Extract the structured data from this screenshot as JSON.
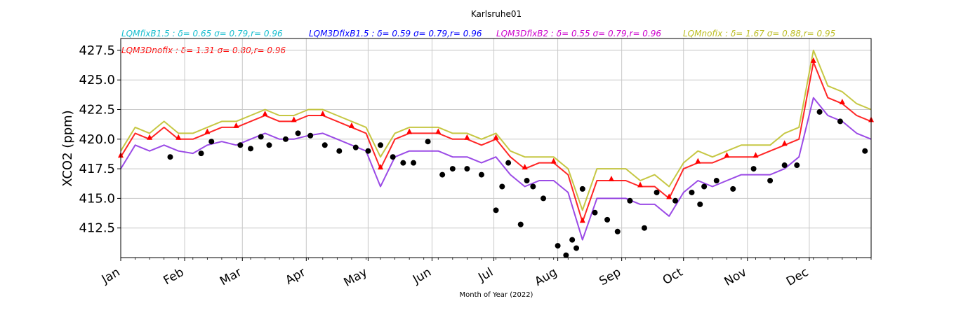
{
  "chart_data": {
    "type": "line",
    "title": "Karlsruhe01",
    "xlabel": "Month of Year (2022)",
    "ylabel": "XCO2 (ppm)",
    "xlim": [
      "2022-01-01",
      "2022-12-31"
    ],
    "ylim": [
      410.0,
      428.5
    ],
    "yticks": [
      412.5,
      415.0,
      417.5,
      420.0,
      422.5,
      425.0,
      427.5
    ],
    "ytick_labels": [
      "412.5",
      "415.0",
      "417.5",
      "420.0",
      "422.5",
      "425.0",
      "427.5"
    ],
    "xtick_labels": [
      "Jan",
      "Feb",
      "Mar",
      "Apr",
      "May",
      "Jun",
      "Jul",
      "Aug",
      "Sep",
      "Oct",
      "Nov",
      "Dec"
    ],
    "grid": true,
    "legend": [
      {
        "text": "LQMfixB1.5 : δ= 0.65 σ= 0.79,r= 0.96",
        "color": "#17becf"
      },
      {
        "text": "LQM3DfixB1.5 : δ= 0.59 σ= 0.79,r= 0.96",
        "color": "#0000ff"
      },
      {
        "text": "LQM3DfixB2 : δ= 0.55 σ= 0.79,r= 0.96",
        "color": "#cc00cc"
      },
      {
        "text": "LQMnofix : δ= 1.67 σ= 0.88,r= 0.95",
        "color": "#bcbd22"
      },
      {
        "text": "LQM3Dnofix : δ= 1.31 σ= 0.80,r= 0.96",
        "color": "#ff0000"
      }
    ],
    "series": [
      {
        "name": "LQM3DfixB2",
        "color": "#8a2be2",
        "x": [
          "2022-01-01",
          "2022-01-08",
          "2022-01-15",
          "2022-01-22",
          "2022-01-29",
          "2022-02-05",
          "2022-02-12",
          "2022-02-19",
          "2022-02-26",
          "2022-03-05",
          "2022-03-12",
          "2022-03-19",
          "2022-03-26",
          "2022-04-02",
          "2022-04-09",
          "2022-04-16",
          "2022-04-23",
          "2022-04-30",
          "2022-05-07",
          "2022-05-14",
          "2022-05-21",
          "2022-05-28",
          "2022-06-04",
          "2022-06-11",
          "2022-06-18",
          "2022-06-25",
          "2022-07-02",
          "2022-07-09",
          "2022-07-16",
          "2022-07-23",
          "2022-07-30",
          "2022-08-06",
          "2022-08-13",
          "2022-08-20",
          "2022-08-27",
          "2022-09-03",
          "2022-09-10",
          "2022-09-17",
          "2022-09-24",
          "2022-10-01",
          "2022-10-08",
          "2022-10-15",
          "2022-10-22",
          "2022-10-29",
          "2022-11-05",
          "2022-11-12",
          "2022-11-19",
          "2022-11-26",
          "2022-12-03",
          "2022-12-10",
          "2022-12-17",
          "2022-12-24",
          "2022-12-31"
        ],
        "y": [
          417.5,
          419.5,
          419.0,
          419.5,
          419.0,
          418.8,
          419.5,
          419.8,
          419.5,
          420.0,
          420.5,
          420.0,
          420.0,
          420.3,
          420.5,
          420.0,
          419.5,
          419.0,
          416.0,
          418.5,
          419.0,
          419.0,
          419.0,
          418.5,
          418.5,
          418.0,
          418.5,
          417.0,
          416.0,
          416.5,
          416.5,
          415.5,
          411.5,
          415.0,
          415.0,
          415.0,
          414.5,
          414.5,
          413.5,
          415.5,
          416.5,
          416.0,
          416.5,
          417.0,
          417.0,
          417.0,
          417.5,
          418.5,
          423.5,
          422.0,
          421.5,
          420.5,
          420.0
        ]
      },
      {
        "name": "LQMnofix",
        "color": "#bcbd22",
        "x": [
          "2022-01-01",
          "2022-01-08",
          "2022-01-15",
          "2022-01-22",
          "2022-01-29",
          "2022-02-05",
          "2022-02-12",
          "2022-02-19",
          "2022-02-26",
          "2022-03-05",
          "2022-03-12",
          "2022-03-19",
          "2022-03-26",
          "2022-04-02",
          "2022-04-09",
          "2022-04-16",
          "2022-04-23",
          "2022-04-30",
          "2022-05-07",
          "2022-05-14",
          "2022-05-21",
          "2022-05-28",
          "2022-06-04",
          "2022-06-11",
          "2022-06-18",
          "2022-06-25",
          "2022-07-02",
          "2022-07-09",
          "2022-07-16",
          "2022-07-23",
          "2022-07-30",
          "2022-08-06",
          "2022-08-13",
          "2022-08-20",
          "2022-08-27",
          "2022-09-03",
          "2022-09-10",
          "2022-09-17",
          "2022-09-24",
          "2022-10-01",
          "2022-10-08",
          "2022-10-15",
          "2022-10-22",
          "2022-10-29",
          "2022-11-05",
          "2022-11-12",
          "2022-11-19",
          "2022-11-26",
          "2022-12-03",
          "2022-12-10",
          "2022-12-17",
          "2022-12-24",
          "2022-12-31"
        ],
        "y": [
          419.0,
          421.0,
          420.5,
          421.5,
          420.5,
          420.5,
          421.0,
          421.5,
          421.5,
          422.0,
          422.5,
          422.0,
          422.0,
          422.5,
          422.5,
          422.0,
          421.5,
          421.0,
          418.5,
          420.5,
          421.0,
          421.0,
          421.0,
          420.5,
          420.5,
          420.0,
          420.5,
          419.0,
          418.5,
          418.5,
          418.5,
          417.5,
          414.0,
          417.5,
          417.5,
          417.5,
          416.5,
          417.0,
          416.0,
          418.0,
          419.0,
          418.5,
          419.0,
          419.5,
          419.5,
          419.5,
          420.5,
          421.0,
          427.5,
          424.5,
          424.0,
          423.0,
          422.5
        ]
      },
      {
        "name": "LQM3Dnofix",
        "color": "#ff0000",
        "x": [
          "2022-01-01",
          "2022-01-08",
          "2022-01-15",
          "2022-01-22",
          "2022-01-29",
          "2022-02-05",
          "2022-02-12",
          "2022-02-19",
          "2022-02-26",
          "2022-03-05",
          "2022-03-12",
          "2022-03-19",
          "2022-03-26",
          "2022-04-02",
          "2022-04-09",
          "2022-04-16",
          "2022-04-23",
          "2022-04-30",
          "2022-05-07",
          "2022-05-14",
          "2022-05-21",
          "2022-05-28",
          "2022-06-04",
          "2022-06-11",
          "2022-06-18",
          "2022-06-25",
          "2022-07-02",
          "2022-07-09",
          "2022-07-16",
          "2022-07-23",
          "2022-07-30",
          "2022-08-06",
          "2022-08-13",
          "2022-08-20",
          "2022-08-27",
          "2022-09-03",
          "2022-09-10",
          "2022-09-17",
          "2022-09-24",
          "2022-10-01",
          "2022-10-08",
          "2022-10-15",
          "2022-10-22",
          "2022-10-29",
          "2022-11-05",
          "2022-11-12",
          "2022-11-19",
          "2022-11-26",
          "2022-12-03",
          "2022-12-10",
          "2022-12-17",
          "2022-12-24",
          "2022-12-31"
        ],
        "y": [
          418.5,
          420.5,
          420.0,
          421.0,
          420.0,
          420.0,
          420.5,
          421.0,
          421.0,
          421.5,
          422.0,
          421.5,
          421.5,
          422.0,
          422.0,
          421.5,
          421.0,
          420.5,
          417.5,
          420.0,
          420.5,
          420.5,
          420.5,
          420.0,
          420.0,
          419.5,
          420.0,
          418.5,
          417.5,
          418.0,
          418.0,
          417.0,
          413.0,
          416.5,
          416.5,
          416.5,
          416.0,
          416.0,
          415.0,
          417.5,
          418.0,
          418.0,
          418.5,
          418.5,
          418.5,
          419.0,
          419.5,
          420.0,
          426.5,
          423.5,
          423.0,
          422.0,
          421.5
        ]
      },
      {
        "name": "Observations",
        "color": "#000000",
        "x": [
          "2022-01-25",
          "2022-02-09",
          "2022-02-14",
          "2022-02-28",
          "2022-03-05",
          "2022-03-10",
          "2022-03-14",
          "2022-03-22",
          "2022-03-28",
          "2022-04-03",
          "2022-04-10",
          "2022-04-17",
          "2022-04-25",
          "2022-05-01",
          "2022-05-07",
          "2022-05-13",
          "2022-05-18",
          "2022-05-23",
          "2022-05-30",
          "2022-06-06",
          "2022-06-11",
          "2022-06-18",
          "2022-06-25",
          "2022-07-02",
          "2022-07-05",
          "2022-07-08",
          "2022-07-14",
          "2022-07-17",
          "2022-07-20",
          "2022-07-25",
          "2022-08-01",
          "2022-08-05",
          "2022-08-08",
          "2022-08-10",
          "2022-08-13",
          "2022-08-19",
          "2022-08-25",
          "2022-08-30",
          "2022-09-05",
          "2022-09-12",
          "2022-09-18",
          "2022-09-27",
          "2022-10-05",
          "2022-10-09",
          "2022-10-11",
          "2022-10-17",
          "2022-10-25",
          "2022-11-04",
          "2022-11-12",
          "2022-11-19",
          "2022-11-25",
          "2022-12-06",
          "2022-12-16",
          "2022-12-28"
        ],
        "y": [
          418.5,
          418.8,
          419.8,
          419.5,
          419.2,
          420.2,
          419.5,
          420.0,
          420.5,
          420.3,
          419.5,
          419.0,
          419.3,
          419.0,
          419.5,
          418.5,
          418.0,
          418.0,
          419.8,
          417.0,
          417.5,
          417.5,
          417.0,
          414.0,
          416.0,
          418.0,
          412.8,
          416.5,
          416.0,
          415.0,
          411.0,
          410.2,
          411.5,
          410.8,
          415.8,
          413.8,
          413.2,
          412.2,
          414.8,
          412.5,
          415.5,
          414.8,
          415.5,
          414.5,
          416.0,
          416.5,
          415.8,
          417.5,
          416.5,
          417.8,
          417.8,
          422.3,
          421.5,
          419.0
        ]
      }
    ]
  }
}
